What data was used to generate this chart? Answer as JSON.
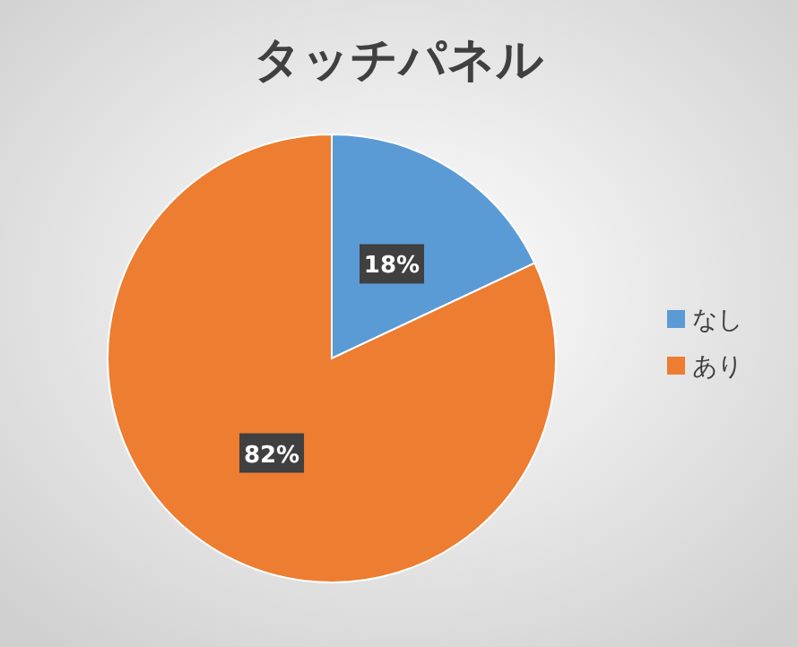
{
  "chart_data": {
    "type": "pie",
    "title": "タッチパネル",
    "categories": [
      "なし",
      "あり"
    ],
    "values": [
      18,
      82
    ],
    "colors": [
      "#5b9bd5",
      "#ed7d31"
    ],
    "value_labels": [
      "18%",
      "82%"
    ],
    "legend": "right"
  }
}
